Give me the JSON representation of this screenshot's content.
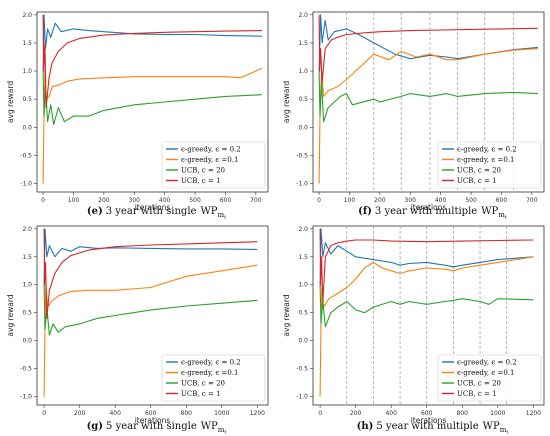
{
  "colors": {
    "blue": "#1f77b4",
    "orange": "#ff7f0e",
    "green": "#2ca02c",
    "red": "#d62728"
  },
  "chart_data": [
    {
      "type": "line",
      "caption": {
        "letter": "(e)",
        "text": "3 year with single",
        "wp": "WP",
        "sub": "m",
        "subsub": "t"
      },
      "xlabel": "iterations",
      "ylabel": "avg reward",
      "xlim": [
        -20,
        740
      ],
      "ylim": [
        -1.15,
        2.05
      ],
      "xticks": [
        0,
        100,
        200,
        300,
        400,
        500,
        600,
        700
      ],
      "yticks": [
        -1.0,
        -0.5,
        0.0,
        0.5,
        1.0,
        1.5,
        2.0
      ],
      "grid": false,
      "dashed_vlines": [],
      "legend_position": "lower-right",
      "series": [
        {
          "name": "ϵ-greedy, ϵ = 0.2",
          "color": "#1f77b4",
          "x": [
            0,
            3,
            8,
            15,
            25,
            40,
            60,
            100,
            150,
            200,
            300,
            400,
            500,
            600,
            720
          ],
          "y": [
            1.0,
            2.0,
            1.4,
            1.75,
            1.6,
            1.85,
            1.7,
            1.75,
            1.72,
            1.7,
            1.66,
            1.65,
            1.65,
            1.63,
            1.62
          ]
        },
        {
          "name": "ϵ-greedy, ϵ =0.1",
          "color": "#ff7f0e",
          "x": [
            0,
            3,
            6,
            10,
            20,
            30,
            50,
            80,
            120,
            200,
            300,
            400,
            500,
            600,
            650,
            700,
            720
          ],
          "y": [
            -1.0,
            0.2,
            1.0,
            0.5,
            0.55,
            0.72,
            0.75,
            0.82,
            0.86,
            0.88,
            0.9,
            0.9,
            0.9,
            0.9,
            0.88,
            1.0,
            1.05
          ]
        },
        {
          "name": "UCB, c = 20",
          "color": "#2ca02c",
          "x": [
            0,
            3,
            8,
            15,
            25,
            35,
            50,
            70,
            100,
            150,
            200,
            300,
            400,
            500,
            600,
            720
          ],
          "y": [
            1.0,
            0.2,
            0.7,
            0.1,
            0.4,
            0.05,
            0.35,
            0.1,
            0.2,
            0.2,
            0.3,
            0.4,
            0.45,
            0.5,
            0.55,
            0.58
          ]
        },
        {
          "name": "UCB, c = 1",
          "color": "#d62728",
          "x": [
            0,
            2,
            6,
            10,
            20,
            30,
            50,
            80,
            120,
            200,
            300,
            400,
            500,
            600,
            720
          ],
          "y": [
            2.0,
            1.0,
            1.5,
            0.35,
            0.9,
            1.15,
            1.35,
            1.5,
            1.58,
            1.64,
            1.67,
            1.69,
            1.7,
            1.71,
            1.72
          ]
        }
      ]
    },
    {
      "type": "line",
      "caption": {
        "letter": "(f)",
        "text": "3 year with multiple",
        "wp": "WP",
        "sub": "m",
        "subsub": "t"
      },
      "xlabel": "iterations",
      "ylabel": "avg reward",
      "xlim": [
        -20,
        740
      ],
      "ylim": [
        -1.15,
        2.05
      ],
      "xticks": [
        0,
        100,
        200,
        300,
        400,
        500,
        600,
        700
      ],
      "yticks": [
        -1.0,
        -0.5,
        0.0,
        0.5,
        1.0,
        1.5,
        2.0
      ],
      "grid": false,
      "dashed_vlines": [
        90,
        180,
        270,
        365,
        455,
        545,
        640
      ],
      "legend_position": "lower-right",
      "series": [
        {
          "name": "ϵ-greedy, ϵ = 0.2",
          "color": "#1f77b4",
          "x": [
            0,
            5,
            10,
            20,
            30,
            50,
            90,
            130,
            180,
            250,
            300,
            365,
            420,
            455,
            545,
            640,
            720
          ],
          "y": [
            1.0,
            2.0,
            1.5,
            1.9,
            1.55,
            1.7,
            1.75,
            1.65,
            1.5,
            1.3,
            1.22,
            1.28,
            1.25,
            1.22,
            1.3,
            1.38,
            1.42
          ]
        },
        {
          "name": "ϵ-greedy, ϵ =0.1",
          "color": "#ff7f0e",
          "x": [
            0,
            3,
            8,
            15,
            30,
            60,
            90,
            120,
            150,
            180,
            230,
            270,
            320,
            365,
            420,
            455,
            545,
            640,
            720
          ],
          "y": [
            -1.0,
            0.2,
            1.0,
            0.55,
            0.65,
            0.72,
            0.85,
            1.0,
            1.15,
            1.3,
            1.2,
            1.35,
            1.25,
            1.3,
            1.2,
            1.2,
            1.3,
            1.37,
            1.4
          ]
        },
        {
          "name": "UCB, c = 20",
          "color": "#2ca02c",
          "x": [
            0,
            3,
            8,
            15,
            30,
            50,
            70,
            90,
            110,
            180,
            200,
            270,
            300,
            365,
            420,
            455,
            545,
            640,
            720
          ],
          "y": [
            1.0,
            0.2,
            0.8,
            0.1,
            0.35,
            0.45,
            0.55,
            0.6,
            0.4,
            0.5,
            0.45,
            0.55,
            0.6,
            0.55,
            0.6,
            0.55,
            0.6,
            0.62,
            0.6
          ]
        },
        {
          "name": "UCB, c = 1",
          "color": "#d62728",
          "x": [
            0,
            2,
            5,
            10,
            20,
            40,
            60,
            90,
            150,
            200,
            300,
            400,
            500,
            600,
            720
          ],
          "y": [
            2.0,
            1.0,
            1.4,
            0.8,
            1.4,
            1.55,
            1.6,
            1.65,
            1.68,
            1.7,
            1.72,
            1.73,
            1.74,
            1.75,
            1.76
          ]
        }
      ]
    },
    {
      "type": "line",
      "caption": {
        "letter": "(g)",
        "text": "5 year with single",
        "wp": "WP",
        "sub": "m",
        "subsub": "t"
      },
      "xlabel": "iterations",
      "ylabel": "avg reward",
      "xlim": [
        -40,
        1260
      ],
      "ylim": [
        -1.15,
        2.05
      ],
      "xticks": [
        0,
        200,
        400,
        600,
        800,
        1000,
        1200
      ],
      "yticks": [
        -1.0,
        -0.5,
        0.0,
        0.5,
        1.0,
        1.5,
        2.0
      ],
      "grid": false,
      "dashed_vlines": [],
      "legend_position": "lower-right",
      "series": [
        {
          "name": "ϵ-greedy, ϵ = 0.2",
          "color": "#1f77b4",
          "x": [
            0,
            5,
            15,
            30,
            60,
            100,
            150,
            200,
            300,
            400,
            600,
            800,
            1000,
            1200
          ],
          "y": [
            1.0,
            2.0,
            1.5,
            1.7,
            1.5,
            1.65,
            1.6,
            1.68,
            1.65,
            1.66,
            1.65,
            1.64,
            1.64,
            1.63
          ]
        },
        {
          "name": "ϵ-greedy, ϵ =0.1",
          "color": "#ff7f0e",
          "x": [
            0,
            5,
            10,
            20,
            40,
            80,
            150,
            250,
            400,
            600,
            700,
            800,
            1000,
            1200
          ],
          "y": [
            -1.0,
            0.3,
            1.0,
            0.6,
            0.7,
            0.8,
            0.88,
            0.9,
            0.9,
            0.95,
            1.05,
            1.15,
            1.25,
            1.35
          ]
        },
        {
          "name": "UCB, c = 20",
          "color": "#2ca02c",
          "x": [
            0,
            5,
            15,
            30,
            50,
            80,
            120,
            200,
            300,
            400,
            600,
            800,
            1000,
            1200
          ],
          "y": [
            1.0,
            0.2,
            0.6,
            0.1,
            0.3,
            0.15,
            0.25,
            0.3,
            0.4,
            0.45,
            0.55,
            0.62,
            0.67,
            0.72
          ]
        },
        {
          "name": "UCB, c = 1",
          "color": "#d62728",
          "x": [
            0,
            3,
            8,
            15,
            30,
            60,
            100,
            150,
            250,
            400,
            600,
            800,
            1000,
            1200
          ],
          "y": [
            2.0,
            1.0,
            1.4,
            0.4,
            0.9,
            1.2,
            1.4,
            1.52,
            1.62,
            1.68,
            1.71,
            1.73,
            1.75,
            1.77
          ]
        }
      ]
    },
    {
      "type": "line",
      "caption": {
        "letter": "(h)",
        "text": "5 year with multiple",
        "wp": "WP",
        "sub": "m",
        "subsub": "t"
      },
      "xlabel": "iterations",
      "ylabel": "avg reward",
      "xlim": [
        -40,
        1260
      ],
      "ylim": [
        -1.15,
        2.05
      ],
      "xticks": [
        0,
        200,
        400,
        600,
        800,
        1000,
        1200
      ],
      "yticks": [
        -1.0,
        -0.5,
        0.0,
        0.5,
        1.0,
        1.5,
        2.0
      ],
      "grid": false,
      "dashed_vlines": [
        150,
        300,
        450,
        600,
        750,
        900,
        1050
      ],
      "legend_position": "lower-right",
      "series": [
        {
          "name": "ϵ-greedy, ϵ = 0.2",
          "color": "#1f77b4",
          "x": [
            0,
            5,
            15,
            30,
            60,
            100,
            150,
            200,
            300,
            400,
            450,
            500,
            600,
            700,
            750,
            800,
            900,
            1000,
            1200
          ],
          "y": [
            1.0,
            2.0,
            1.5,
            1.75,
            1.55,
            1.7,
            1.6,
            1.5,
            1.45,
            1.4,
            1.35,
            1.38,
            1.4,
            1.35,
            1.32,
            1.35,
            1.4,
            1.45,
            1.5
          ]
        },
        {
          "name": "ϵ-greedy, ϵ =0.1",
          "color": "#ff7f0e",
          "x": [
            0,
            5,
            10,
            20,
            50,
            100,
            150,
            200,
            250,
            300,
            350,
            400,
            450,
            500,
            600,
            700,
            750,
            800,
            900,
            1000,
            1200
          ],
          "y": [
            -1.0,
            0.3,
            1.0,
            0.6,
            0.75,
            0.85,
            0.95,
            1.1,
            1.3,
            1.4,
            1.3,
            1.25,
            1.2,
            1.25,
            1.3,
            1.28,
            1.25,
            1.3,
            1.35,
            1.4,
            1.5
          ]
        },
        {
          "name": "UCB, c = 20",
          "color": "#2ca02c",
          "x": [
            0,
            5,
            15,
            30,
            60,
            100,
            150,
            200,
            250,
            300,
            400,
            450,
            500,
            600,
            700,
            750,
            800,
            900,
            950,
            1000,
            1200
          ],
          "y": [
            1.0,
            0.3,
            0.7,
            0.25,
            0.5,
            0.6,
            0.7,
            0.55,
            0.5,
            0.6,
            0.7,
            0.65,
            0.7,
            0.65,
            0.7,
            0.72,
            0.75,
            0.7,
            0.65,
            0.75,
            0.73
          ]
        },
        {
          "name": "UCB, c = 1",
          "color": "#d62728",
          "x": [
            0,
            3,
            8,
            15,
            30,
            60,
            100,
            150,
            200,
            300,
            400,
            600,
            800,
            1000,
            1200
          ],
          "y": [
            2.0,
            1.0,
            1.5,
            0.7,
            1.5,
            1.7,
            1.75,
            1.78,
            1.8,
            1.8,
            1.78,
            1.77,
            1.78,
            1.79,
            1.8
          ]
        }
      ]
    }
  ]
}
